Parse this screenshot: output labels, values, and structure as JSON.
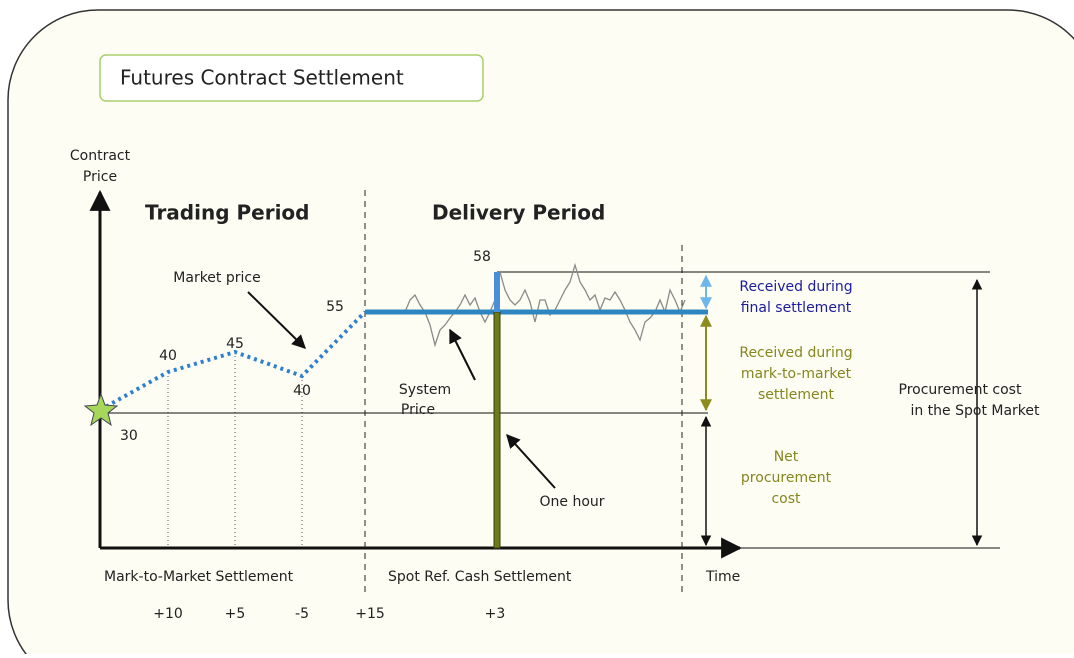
{
  "title": "Futures Contract Settlement",
  "y_axis_label": [
    "Contract",
    "Price"
  ],
  "x_axis_label": "Time",
  "periods": [
    "Trading Period",
    "Delivery Period"
  ],
  "price_labels": [
    30,
    40,
    45,
    40,
    55,
    58
  ],
  "annotations": {
    "market_price": "Market price",
    "system_price": [
      "System",
      "Price"
    ],
    "one_hour": "One hour",
    "received_final": [
      "Received during",
      "final settlement"
    ],
    "received_mtm": [
      "Received during",
      "mark-to-market",
      "settlement"
    ],
    "net_cost": [
      "Net",
      "procurement",
      "cost"
    ],
    "procurement_cost": [
      "Procurement cost",
      "in the Spot Market"
    ]
  },
  "settlements": [
    "Mark-to-Market Settlement",
    "Spot Ref. Cash Settlement"
  ],
  "settlement_amounts": [
    "+10",
    "+5",
    "-5",
    "+15",
    "+3"
  ]
}
